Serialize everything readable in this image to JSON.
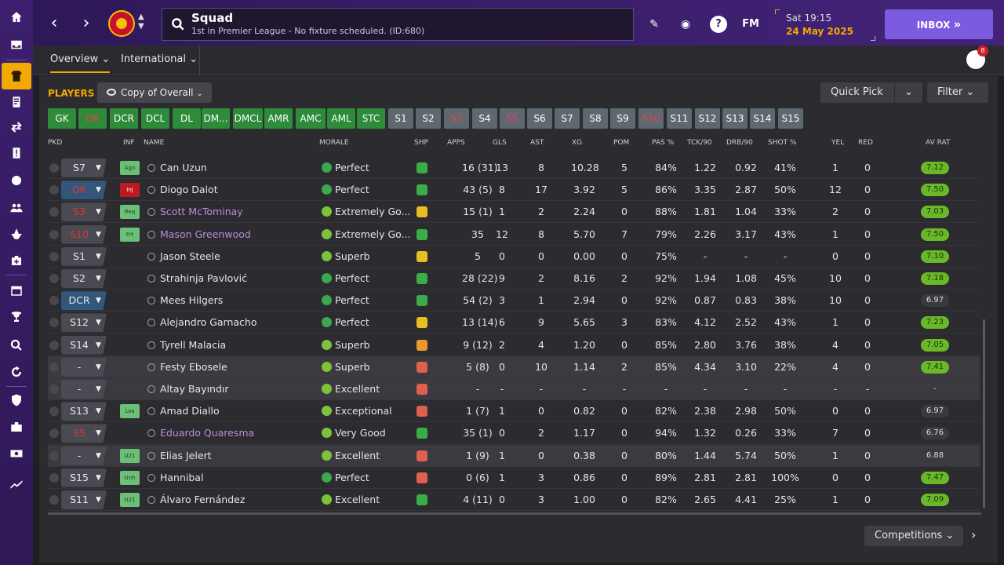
{
  "header": {
    "title": "Squad",
    "subtitle": "1st in Premier League - No fixture scheduled. (ID:680)",
    "date_day": "Sat 19:15",
    "date": "24 May 2025",
    "inbox_label": "INBOX",
    "fm_label": "FM",
    "help_label": "?",
    "notifications": "8"
  },
  "tabs": {
    "overview": "Overview",
    "international": "International"
  },
  "panel": {
    "players_label": "PLAYERS",
    "view": "Copy of Overall",
    "quick_pick": "Quick Pick",
    "filter": "Filter",
    "competitions": "Competitions"
  },
  "positions": [
    "GK",
    "DR",
    "DCR",
    "DCL",
    "DL",
    "DM...",
    "DMCL",
    "AMR",
    "AMC",
    "AML",
    "STC",
    "S1",
    "S2",
    "S3",
    "S4",
    "S5",
    "S6",
    "S7",
    "S8",
    "S9",
    "S10",
    "S11",
    "S12",
    "S13",
    "S14",
    "S15"
  ],
  "columns": [
    "PKD",
    "INF",
    "NAME",
    "MORALE",
    "SHP",
    "APPS",
    "GLS",
    "AST",
    "XG",
    "POM",
    "PAS %",
    "TCK/90",
    "DRB/90",
    "SHOT %",
    "YEL",
    "RED",
    "AV RAT"
  ],
  "players": [
    {
      "sel": "S7",
      "inf": "Agn",
      "name": "Can Uzun",
      "morale": "Perfect",
      "apps": "16 (31)",
      "gls": "13",
      "ast": "8",
      "xg": "10.28",
      "pom": "5",
      "pas": "84%",
      "tck": "1.22",
      "drb": "0.92",
      "shot": "41%",
      "yel": "1",
      "red": "0",
      "rat": "7.12"
    },
    {
      "sel": "DR",
      "inf": "Inj",
      "name": "Diogo Dalot",
      "morale": "Perfect",
      "apps": "43 (5)",
      "gls": "8",
      "ast": "17",
      "xg": "3.92",
      "pom": "5",
      "pas": "86%",
      "tck": "3.35",
      "drb": "2.87",
      "shot": "50%",
      "yel": "12",
      "red": "0",
      "rat": "7.50"
    },
    {
      "sel": "S3",
      "inf": "Req",
      "name": "Scott McTominay",
      "morale": "Extremely Go...",
      "apps": "15 (1)",
      "gls": "1",
      "ast": "2",
      "xg": "2.24",
      "pom": "0",
      "pas": "88%",
      "tck": "1.81",
      "drb": "1.04",
      "shot": "33%",
      "yel": "2",
      "red": "0",
      "rat": "7.03"
    },
    {
      "sel": "S10",
      "inf": "Frt",
      "name": "Mason Greenwood",
      "morale": "Extremely Go...",
      "apps": "35",
      "gls": "12",
      "ast": "8",
      "xg": "5.70",
      "pom": "7",
      "pas": "79%",
      "tck": "2.26",
      "drb": "3.17",
      "shot": "43%",
      "yel": "1",
      "red": "0",
      "rat": "7.50"
    },
    {
      "sel": "S1",
      "inf": "",
      "name": "Jason Steele",
      "morale": "Superb",
      "apps": "5",
      "gls": "0",
      "ast": "0",
      "xg": "0.00",
      "pom": "0",
      "pas": "75%",
      "tck": "-",
      "drb": "-",
      "shot": "-",
      "yel": "0",
      "red": "0",
      "rat": "7.10"
    },
    {
      "sel": "S2",
      "inf": "",
      "name": "Strahinja Pavlović",
      "morale": "Perfect",
      "apps": "28 (22)",
      "gls": "9",
      "ast": "2",
      "xg": "8.16",
      "pom": "2",
      "pas": "92%",
      "tck": "1.94",
      "drb": "1.08",
      "shot": "45%",
      "yel": "10",
      "red": "0",
      "rat": "7.18"
    },
    {
      "sel": "DCR",
      "inf": "",
      "name": "Mees Hilgers",
      "morale": "Perfect",
      "apps": "54 (2)",
      "gls": "3",
      "ast": "1",
      "xg": "2.94",
      "pom": "0",
      "pas": "92%",
      "tck": "0.87",
      "drb": "0.83",
      "shot": "38%",
      "yel": "10",
      "red": "0",
      "rat": "6.97"
    },
    {
      "sel": "S12",
      "inf": "",
      "name": "Alejandro Garnacho",
      "morale": "Perfect",
      "apps": "13 (14)",
      "gls": "6",
      "ast": "9",
      "xg": "5.65",
      "pom": "3",
      "pas": "83%",
      "tck": "4.12",
      "drb": "2.52",
      "shot": "43%",
      "yel": "1",
      "red": "0",
      "rat": "7.23"
    },
    {
      "sel": "S14",
      "inf": "",
      "name": "Tyrell Malacia",
      "morale": "Superb",
      "apps": "9 (12)",
      "gls": "2",
      "ast": "4",
      "xg": "1.20",
      "pom": "0",
      "pas": "85%",
      "tck": "2.80",
      "drb": "3.76",
      "shot": "38%",
      "yel": "4",
      "red": "0",
      "rat": "7.05"
    },
    {
      "sel": "-",
      "inf": "",
      "name": "Festy Ebosele",
      "morale": "Superb",
      "apps": "5 (8)",
      "gls": "0",
      "ast": "10",
      "xg": "1.14",
      "pom": "2",
      "pas": "85%",
      "tck": "4.34",
      "drb": "3.10",
      "shot": "22%",
      "yel": "4",
      "red": "0",
      "rat": "7.41"
    },
    {
      "sel": "-",
      "inf": "",
      "name": "Altay Bayındır",
      "morale": "Excellent",
      "apps": "-",
      "gls": "-",
      "ast": "-",
      "xg": "-",
      "pom": "-",
      "pas": "-",
      "tck": "-",
      "drb": "-",
      "shot": "-",
      "yel": "-",
      "red": "-",
      "rat": "-"
    },
    {
      "sel": "S13",
      "inf": "Loa",
      "name": "Amad Diallo",
      "morale": "Exceptional",
      "apps": "1 (7)",
      "gls": "1",
      "ast": "0",
      "xg": "0.82",
      "pom": "0",
      "pas": "82%",
      "tck": "2.38",
      "drb": "2.98",
      "shot": "50%",
      "yel": "0",
      "red": "0",
      "rat": "6.97"
    },
    {
      "sel": "S5",
      "inf": "",
      "name": "Eduardo Quaresma",
      "morale": "Very Good",
      "apps": "35 (1)",
      "gls": "0",
      "ast": "2",
      "xg": "1.17",
      "pom": "0",
      "pas": "94%",
      "tck": "1.32",
      "drb": "0.26",
      "shot": "33%",
      "yel": "7",
      "red": "0",
      "rat": "6.76"
    },
    {
      "sel": "-",
      "inf": "U21",
      "name": "Elias Jelert",
      "morale": "Excellent",
      "apps": "1 (9)",
      "gls": "1",
      "ast": "0",
      "xg": "0.38",
      "pom": "0",
      "pas": "80%",
      "tck": "1.44",
      "drb": "5.74",
      "shot": "50%",
      "yel": "1",
      "red": "0",
      "rat": "6.88"
    },
    {
      "sel": "S15",
      "inf": "Unh",
      "name": "Hannibal",
      "morale": "Perfect",
      "apps": "0 (6)",
      "gls": "1",
      "ast": "3",
      "xg": "0.86",
      "pom": "0",
      "pas": "89%",
      "tck": "2.81",
      "drb": "2.81",
      "shot": "100%",
      "yel": "0",
      "red": "0",
      "rat": "7.47"
    },
    {
      "sel": "S11",
      "inf": "U21",
      "name": "Álvaro Fernández",
      "morale": "Excellent",
      "apps": "4 (11)",
      "gls": "0",
      "ast": "3",
      "xg": "1.00",
      "pom": "0",
      "pas": "82%",
      "tck": "2.65",
      "drb": "4.41",
      "shot": "25%",
      "yel": "1",
      "red": "0",
      "rat": "7.09"
    }
  ]
}
